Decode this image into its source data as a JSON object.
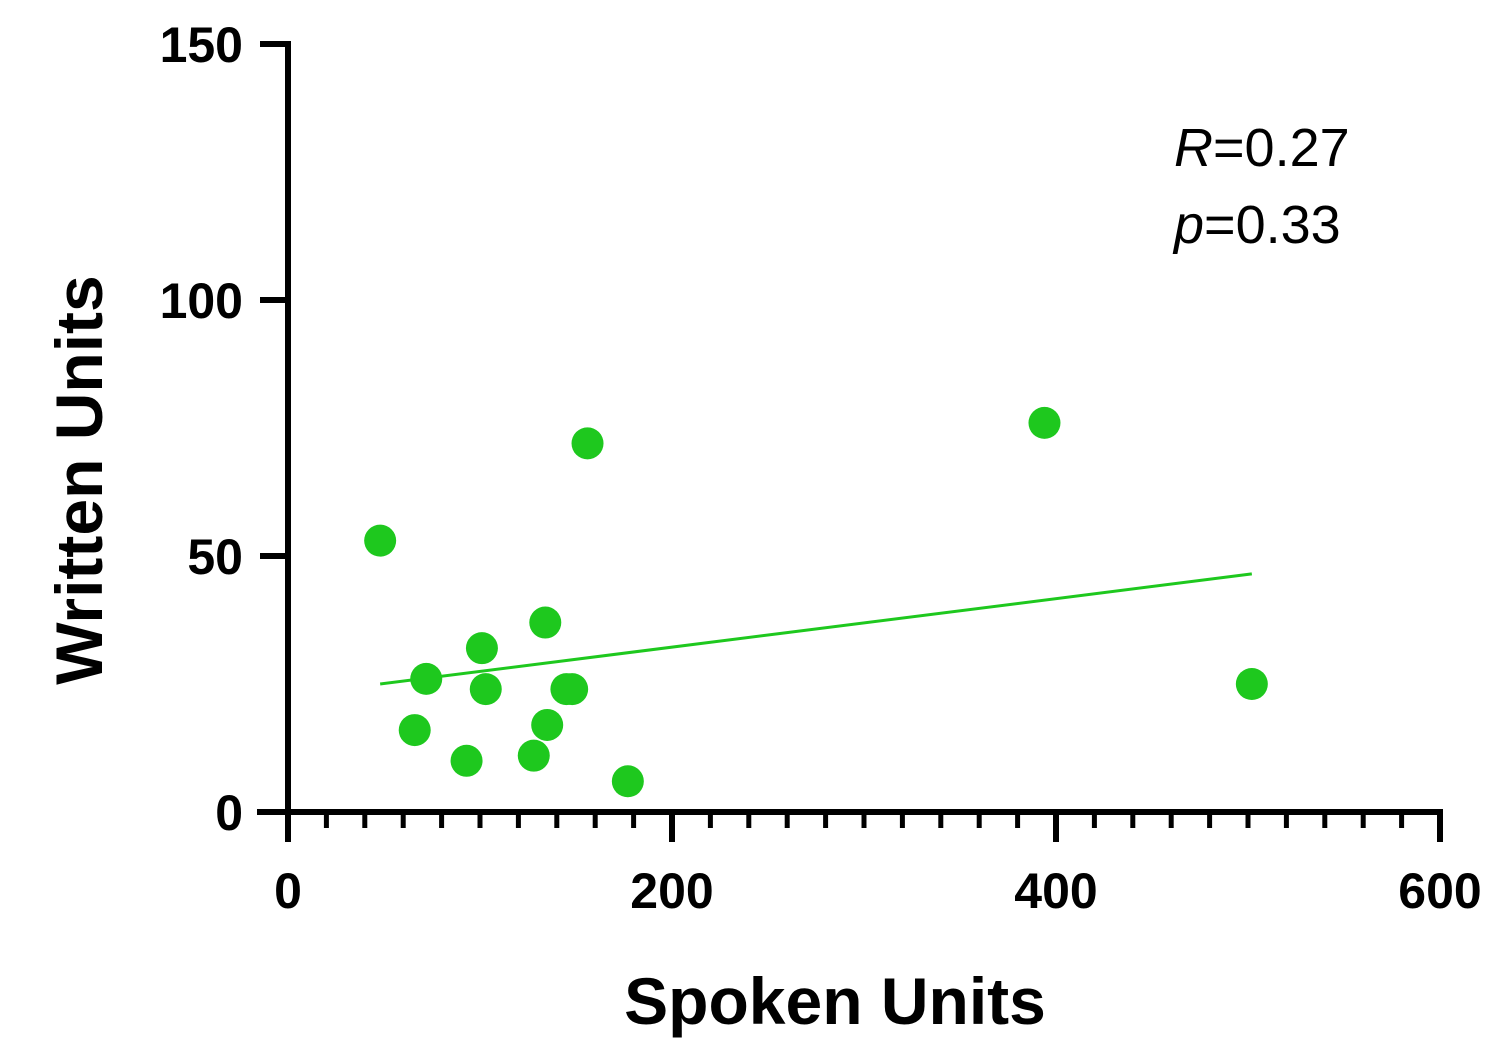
{
  "chart_data": {
    "type": "scatter",
    "title": "",
    "xlabel": "Spoken Units",
    "ylabel": "Written Units",
    "xlim": [
      0,
      600
    ],
    "ylim": [
      0,
      150
    ],
    "x_ticks": [
      0,
      200,
      400,
      600
    ],
    "x_tick_labels": [
      "0",
      "200",
      "400",
      "600"
    ],
    "x_minor_step": 20,
    "y_ticks": [
      0,
      50,
      100,
      150
    ],
    "y_tick_labels": [
      "0",
      "50",
      "100",
      "150"
    ],
    "grid": false,
    "legend": "none",
    "series": [
      {
        "color": "#1ec81e",
        "points": [
          {
            "x": 48,
            "y": 53
          },
          {
            "x": 66,
            "y": 16
          },
          {
            "x": 72,
            "y": 26
          },
          {
            "x": 93,
            "y": 10
          },
          {
            "x": 101,
            "y": 32
          },
          {
            "x": 103,
            "y": 24
          },
          {
            "x": 128,
            "y": 11
          },
          {
            "x": 134,
            "y": 37
          },
          {
            "x": 135,
            "y": 17
          },
          {
            "x": 145,
            "y": 24
          },
          {
            "x": 148,
            "y": 24
          },
          {
            "x": 156,
            "y": 72
          },
          {
            "x": 177,
            "y": 6
          },
          {
            "x": 394,
            "y": 76
          },
          {
            "x": 502,
            "y": 25
          }
        ]
      }
    ],
    "trendline": {
      "color": "#1ec81e",
      "x_start": 48,
      "y_start": 25,
      "x_end": 502,
      "y_end": 46.5
    },
    "stats": {
      "r_symbol": "R",
      "r_value": "=0.27",
      "p_symbol": "p",
      "p_value": "=0.33"
    }
  }
}
